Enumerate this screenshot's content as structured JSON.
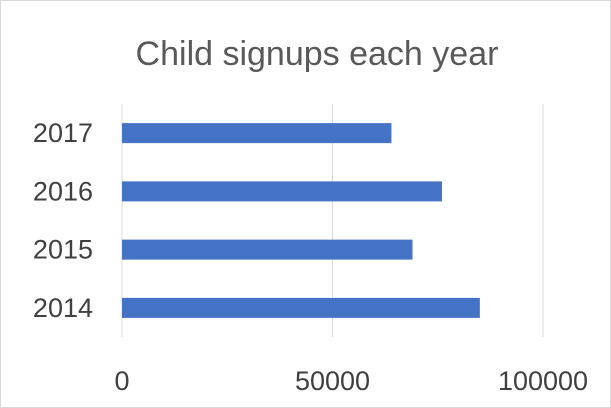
{
  "chart_data": {
    "type": "bar",
    "orientation": "horizontal",
    "title": "Child signups each year",
    "xlabel": "",
    "ylabel": "",
    "categories": [
      "2014",
      "2015",
      "2016",
      "2017"
    ],
    "values": [
      85000,
      69000,
      76000,
      64000
    ],
    "xlim": [
      0,
      100000
    ],
    "x_ticks": [
      "0",
      "50000",
      "100000"
    ],
    "grid": "vertical",
    "legend": "none",
    "bar_color": "#4472c4"
  }
}
